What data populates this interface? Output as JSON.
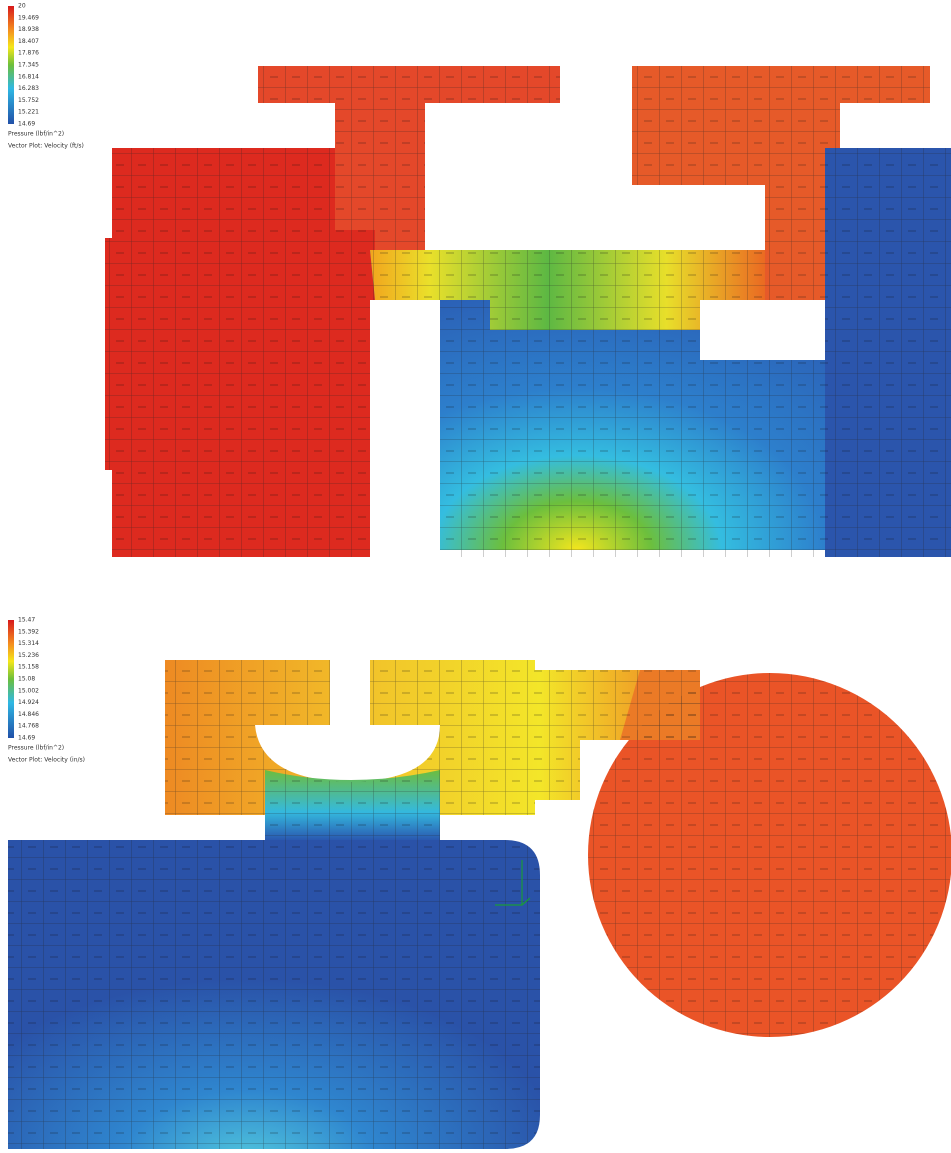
{
  "panels": [
    {
      "legend": {
        "ticks": [
          "20",
          "19.469",
          "18.938",
          "18.407",
          "17.876",
          "17.345",
          "16.814",
          "16.283",
          "15.752",
          "15.221",
          "14.69"
        ],
        "quantity": "Pressure (lbf/in^2)",
        "vector_label": "Vector Plot: Velocity (ft/s)"
      }
    },
    {
      "legend": {
        "ticks": [
          "15.47",
          "15.392",
          "15.314",
          "15.236",
          "15.158",
          "15.08",
          "15.002",
          "14.924",
          "14.846",
          "14.768",
          "14.69"
        ],
        "quantity": "Pressure (lbf/in^2)",
        "vector_label": "Vector Plot: Velocity (in/s)"
      }
    }
  ]
}
